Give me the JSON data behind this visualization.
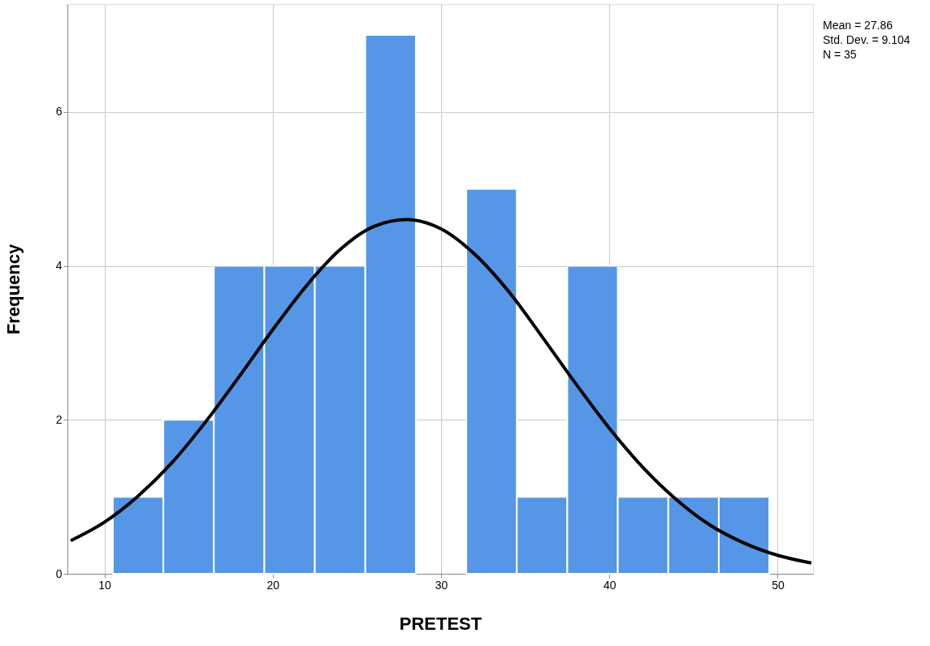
{
  "chart_data": {
    "type": "histogram",
    "xlabel": "PRETEST",
    "ylabel": "Frequency",
    "bins": [
      10.5,
      13.5,
      16.5,
      19.5,
      22.5,
      25.5,
      28.5,
      31.5,
      34.5,
      37.5,
      40.5,
      43.5,
      46.5,
      49.5
    ],
    "values": [
      1,
      2,
      4,
      4,
      4,
      7,
      0,
      5,
      1,
      4,
      1,
      1,
      1
    ],
    "color": "#5596e6",
    "series": [
      {
        "type": "line",
        "color": "#000000",
        "x": [
          8,
          10,
          12,
          14,
          16,
          18,
          20,
          22,
          24,
          26,
          28,
          30,
          32,
          34,
          36,
          38,
          40,
          42,
          44,
          46,
          48,
          50,
          52
        ],
        "values": [
          0.43,
          0.67,
          1.01,
          1.44,
          1.97,
          2.56,
          3.17,
          3.74,
          4.21,
          4.51,
          4.6,
          4.48,
          4.15,
          3.67,
          3.08,
          2.47,
          1.89,
          1.38,
          0.96,
          0.63,
          0.4,
          0.24,
          0.14
        ]
      }
    ],
    "xlim": [
      7.8,
      52.1
    ],
    "xticks": [
      10,
      20,
      30,
      40,
      50
    ],
    "ylim": [
      0,
      7.4
    ],
    "yticks": [
      0,
      2,
      4,
      6
    ],
    "grid": true,
    "annotations": [
      "Mean = 27.86",
      "Std. Dev. = 9.104",
      "N = 35"
    ]
  }
}
